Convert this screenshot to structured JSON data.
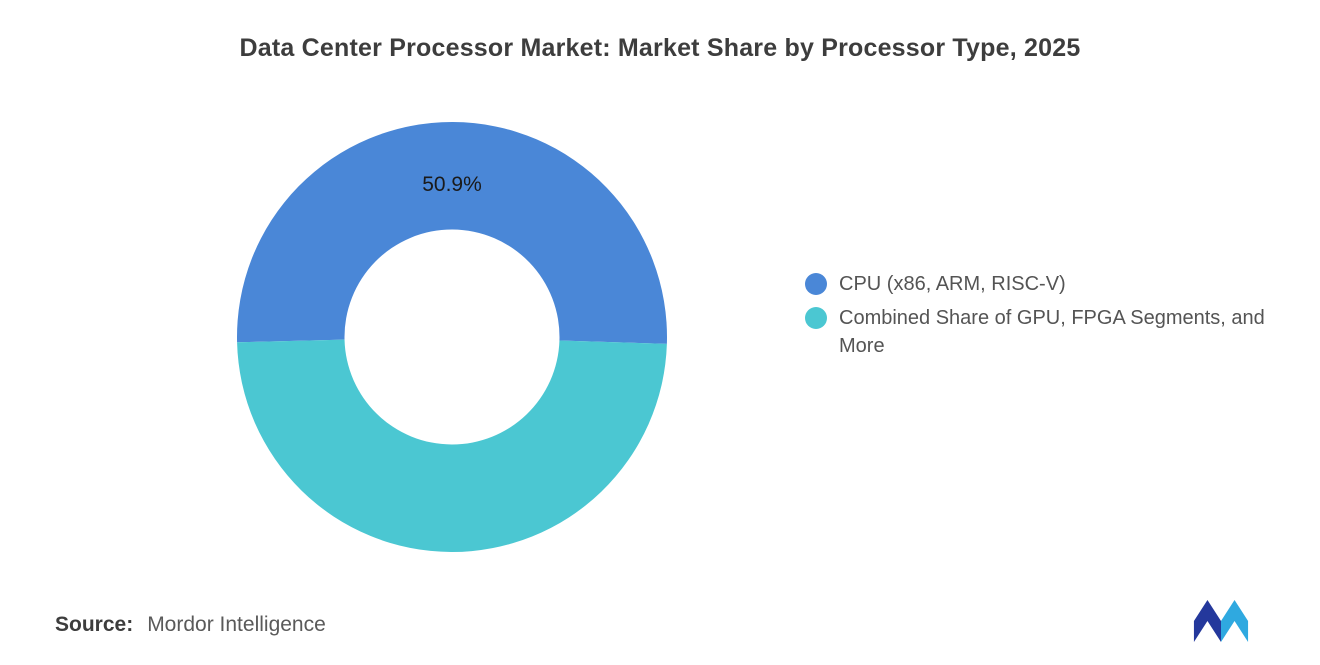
{
  "title": "Data Center Processor Market: Market Share by Processor Type, 2025",
  "chart_data": {
    "type": "pie",
    "subtype": "donut",
    "title": "Data Center Processor Market: Market Share by Processor Type, 2025",
    "legend_position": "right",
    "start_angle_deg": 268.6,
    "inner_radius_ratio": 0.5,
    "slices": [
      {
        "label": "CPU (x86, ARM, RISC-V)",
        "value": 50.9,
        "data_label": "50.9%",
        "color": "#4A87D7"
      },
      {
        "label": "Combined Share of GPU, FPGA Segments, and More",
        "value": 49.1,
        "data_label": "",
        "color": "#4BC7D2"
      }
    ]
  },
  "source": {
    "prefix": "Source:",
    "text": "Mordor Intelligence"
  },
  "logo": {
    "name": "Mordor Intelligence",
    "color_dark": "#24389C",
    "color_light": "#2FA9E0"
  }
}
